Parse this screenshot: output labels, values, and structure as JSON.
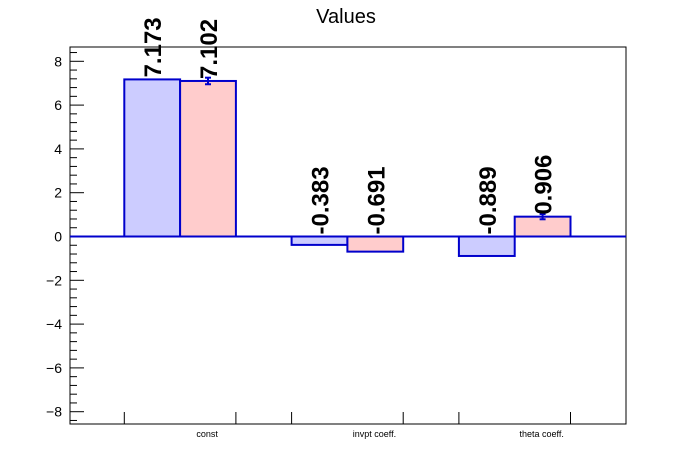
{
  "chart_data": {
    "type": "bar",
    "title": "Values",
    "categories": [
      "const",
      "invpt coeff.",
      "theta coeff."
    ],
    "series": [
      {
        "values": [
          7.173,
          -0.383,
          -0.889
        ],
        "errors": [
          0.0,
          0.0,
          0.0
        ],
        "fill": "#ccccff"
      },
      {
        "values": [
          7.102,
          -0.691,
          0.906
        ],
        "errors": [
          0.15,
          0.0,
          0.12
        ],
        "fill": "#ffcccc"
      }
    ],
    "data_labels": [
      [
        "7.173",
        "-0.383",
        "-0.889"
      ],
      [
        "7.102",
        "-0.691",
        "0.906"
      ]
    ],
    "ylim": [
      -8.6,
      8.6
    ],
    "yticks": [
      -8,
      -6,
      -4,
      -2,
      0,
      2,
      4,
      6,
      8
    ],
    "ytick_labels": [
      "−8",
      "−6",
      "−4",
      "−2",
      "0",
      "2",
      "4",
      "6",
      "8"
    ],
    "bar_outline": "#0000cc",
    "grid": false,
    "legend": "none"
  }
}
